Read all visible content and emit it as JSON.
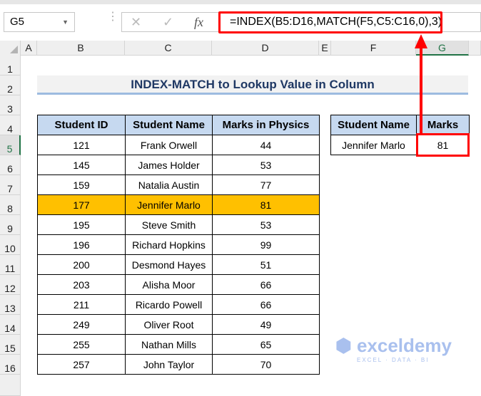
{
  "formula_bar": {
    "name_box": "G5",
    "cancel_icon": "✕",
    "enter_icon": "✓",
    "fx_label": "fx",
    "formula": "=INDEX(B5:D16,MATCH(F5,C5:C16,0),3)"
  },
  "columns": [
    "A",
    "B",
    "C",
    "D",
    "E",
    "F",
    "G"
  ],
  "selected_column": "G",
  "rows": [
    "1",
    "2",
    "3",
    "4",
    "5",
    "6",
    "7",
    "8",
    "9",
    "10",
    "11",
    "12",
    "13",
    "14",
    "15",
    "16"
  ],
  "selected_row": "5",
  "title": "INDEX-MATCH to Lookup Value in Column",
  "main_table": {
    "headers": [
      "Student ID",
      "Student Name",
      "Marks in Physics"
    ],
    "rows": [
      [
        "121",
        "Frank Orwell",
        "44"
      ],
      [
        "145",
        "James Holder",
        "53"
      ],
      [
        "159",
        "Natalia Austin",
        "77"
      ],
      [
        "177",
        "Jennifer Marlo",
        "81"
      ],
      [
        "195",
        "Steve Smith",
        "53"
      ],
      [
        "196",
        "Richard Hopkins",
        "99"
      ],
      [
        "200",
        "Desmond Hayes",
        "51"
      ],
      [
        "203",
        "Alisha Moor",
        "66"
      ],
      [
        "211",
        "Ricardo Powell",
        "66"
      ],
      [
        "249",
        "Oliver Root",
        "49"
      ],
      [
        "255",
        "Nathan Mills",
        "65"
      ],
      [
        "257",
        "John Taylor",
        "70"
      ]
    ],
    "highlighted_row": 3
  },
  "lookup_table": {
    "headers": [
      "Student Name",
      "Marks"
    ],
    "row": [
      "Jennifer Marlo",
      "81"
    ]
  },
  "watermark": {
    "name": "exceldemy",
    "tagline": "EXCEL · DATA · BI"
  },
  "colors": {
    "highlight": "#FFC000",
    "header": "#C6D9F0",
    "annotation": "#FF0000",
    "title_text": "#1F3864"
  }
}
